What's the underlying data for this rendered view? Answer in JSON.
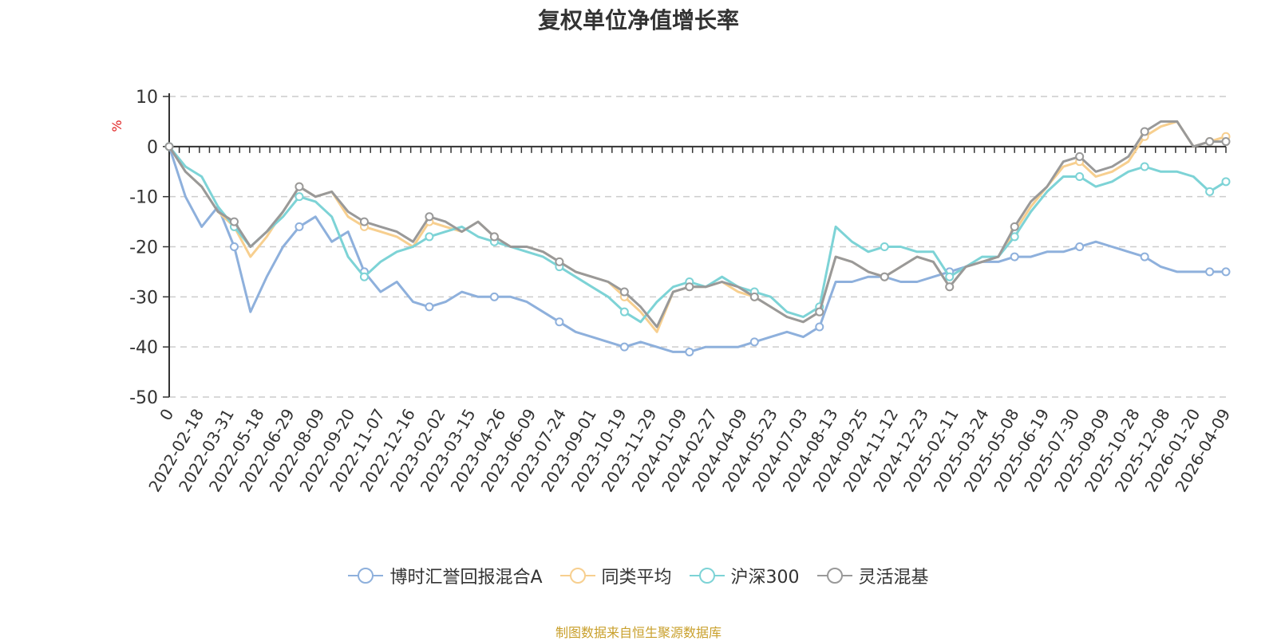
{
  "chart_data": {
    "type": "line",
    "title": "复权单位净值增长率",
    "ylabel": "%",
    "ylim": [
      -50,
      10
    ],
    "yticks": [
      10,
      0,
      -10,
      -20,
      -30,
      -40,
      -50
    ],
    "x_tick_labels": [
      "0",
      "2022-02-18",
      "2022-03-31",
      "2022-05-18",
      "2022-06-29",
      "2022-08-09",
      "2022-09-20",
      "2022-11-07",
      "2022-12-16",
      "2023-02-02",
      "2023-03-15",
      "2023-04-26",
      "2023-06-09",
      "2023-07-24",
      "2023-09-01",
      "2023-10-19",
      "2023-11-29",
      "2024-01-09",
      "2024-02-27",
      "2024-04-09",
      "2024-05-23",
      "2024-07-03",
      "2024-08-13",
      "2024-09-25",
      "2024-11-12",
      "2024-12-23",
      "2025-02-11",
      "2025-03-24",
      "2025-05-08",
      "2025-06-19",
      "2025-07-30",
      "2025-09-09",
      "2025-10-28",
      "2025-12-08",
      "2026-01-20",
      "2026-04-09"
    ],
    "grid": true,
    "legend_position": "bottom-center",
    "series": [
      {
        "name": "博时汇誉回报混合A",
        "color": "#8eb0dc",
        "values": [
          0,
          -10,
          -16,
          -12,
          -20,
          -33,
          -26,
          -20,
          -16,
          -14,
          -19,
          -17,
          -25,
          -29,
          -27,
          -31,
          -32,
          -31,
          -29,
          -30,
          -30,
          -30,
          -31,
          -33,
          -35,
          -37,
          -38,
          -39,
          -40,
          -39,
          -40,
          -41,
          -41,
          -40,
          -40,
          -40,
          -39,
          -38,
          -37,
          -38,
          -36,
          -27,
          -27,
          -26,
          -26,
          -27,
          -27,
          -26,
          -25,
          -24,
          -23,
          -23,
          -22,
          -22,
          -21,
          -21,
          -20,
          -19,
          -20,
          -21,
          -22,
          -24,
          -25,
          -25,
          -25,
          -25
        ]
      },
      {
        "name": "同类平均",
        "color": "#f7cf8f",
        "values": [
          0,
          -5,
          -8,
          -13,
          -16,
          -22,
          -18,
          -13,
          -8,
          -10,
          -9,
          -14,
          -16,
          -17,
          -18,
          -20,
          -15,
          -16,
          -17,
          -15,
          -18,
          -20,
          -20,
          -21,
          -23,
          -25,
          -26,
          -27,
          -30,
          -33,
          -37,
          -29,
          -28,
          -28,
          -27,
          -29,
          -30,
          -32,
          -34,
          -35,
          -33,
          -22,
          -23,
          -25,
          -26,
          -24,
          -22,
          -23,
          -28,
          -24,
          -23,
          -22,
          -17,
          -12,
          -8,
          -4,
          -3,
          -6,
          -5,
          -3,
          2,
          4,
          5,
          0,
          1,
          2
        ]
      },
      {
        "name": "沪深300",
        "color": "#7dd3d6",
        "values": [
          0,
          -4,
          -6,
          -12,
          -16,
          -20,
          -17,
          -14,
          -10,
          -11,
          -14,
          -22,
          -26,
          -23,
          -21,
          -20,
          -18,
          -17,
          -16,
          -18,
          -19,
          -20,
          -21,
          -22,
          -24,
          -26,
          -28,
          -30,
          -33,
          -35,
          -31,
          -28,
          -27,
          -28,
          -26,
          -28,
          -29,
          -30,
          -33,
          -34,
          -32,
          -16,
          -19,
          -21,
          -20,
          -20,
          -21,
          -21,
          -26,
          -24,
          -22,
          -22,
          -18,
          -13,
          -9,
          -6,
          -6,
          -8,
          -7,
          -5,
          -4,
          -5,
          -5,
          -6,
          -9,
          -7
        ]
      },
      {
        "name": "灵活混基",
        "color": "#999999",
        "values": [
          0,
          -5,
          -8,
          -13,
          -15,
          -20,
          -17,
          -13,
          -8,
          -10,
          -9,
          -13,
          -15,
          -16,
          -17,
          -19,
          -14,
          -15,
          -17,
          -15,
          -18,
          -20,
          -20,
          -21,
          -23,
          -25,
          -26,
          -27,
          -29,
          -32,
          -36,
          -29,
          -28,
          -28,
          -27,
          -28,
          -30,
          -32,
          -34,
          -35,
          -33,
          -22,
          -23,
          -25,
          -26,
          -24,
          -22,
          -23,
          -28,
          -24,
          -23,
          -22,
          -16,
          -11,
          -8,
          -3,
          -2,
          -5,
          -4,
          -2,
          3,
          5,
          5,
          0,
          1,
          1
        ]
      }
    ]
  },
  "source_note": "制图数据来自恒生聚源数据库"
}
